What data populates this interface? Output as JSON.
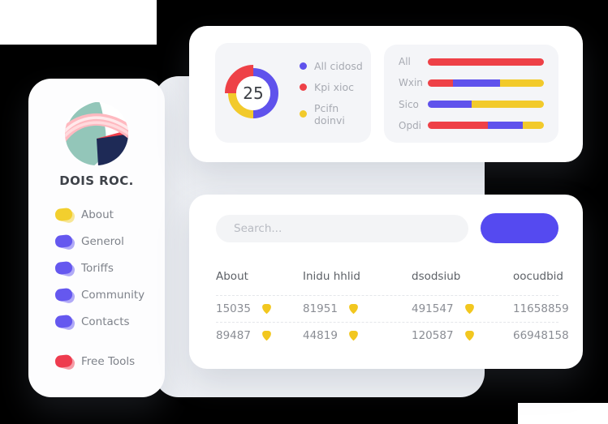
{
  "brand": {
    "name": "DOIS ROC."
  },
  "sidebar": {
    "items": [
      {
        "label": "About",
        "color": "#F2CF2E"
      },
      {
        "label": "Generol",
        "color": "#6558EF"
      },
      {
        "label": "Toriffs",
        "color": "#6558EF"
      },
      {
        "label": "Community",
        "color": "#6558EF"
      },
      {
        "label": "Contacts",
        "color": "#6558EF"
      }
    ],
    "footer_item": {
      "label": "Free Tools",
      "color": "#EE3C4F"
    }
  },
  "search": {
    "placeholder": "Search...",
    "button_color": "#554AF0"
  },
  "chart_data": [
    {
      "type": "donut",
      "center_value": "25",
      "segments": [
        {
          "label": "All cidosd",
          "color": "#5F52EC",
          "pct": 50,
          "thickness": 10
        },
        {
          "label": "Pcifn doinvi",
          "color": "#F2CA2B",
          "pct": 25,
          "thickness": 10
        },
        {
          "label": "Kpi xioc",
          "color": "#EE4147",
          "pct": 25,
          "thickness": 14
        }
      ],
      "legend": [
        {
          "label": "All cidosd",
          "color": "#5F52EC"
        },
        {
          "label": "Kpi xioc",
          "color": "#EE4147"
        },
        {
          "label": "Pcifn doinvi",
          "color": "#F2CA2B"
        }
      ],
      "legend_position": "right"
    },
    {
      "type": "stacked-bar-horizontal",
      "xlim": [
        0,
        100
      ],
      "rows": [
        {
          "label": "All",
          "segments": [
            {
              "color": "#EE4147",
              "pct": 100
            }
          ]
        },
        {
          "label": "Wxin",
          "segments": [
            {
              "color": "#EE4147",
              "pct": 22
            },
            {
              "color": "#5F52EC",
              "pct": 40
            },
            {
              "color": "#F2CA2B",
              "pct": 38
            }
          ]
        },
        {
          "label": "Sico",
          "segments": [
            {
              "color": "#5F52EC",
              "pct": 38
            },
            {
              "color": "#F2CA2B",
              "pct": 62
            }
          ]
        },
        {
          "label": "Opdi",
          "segments": [
            {
              "color": "#EE4147",
              "pct": 52
            },
            {
              "color": "#5F52EC",
              "pct": 30
            },
            {
              "color": "#F2CA2B",
              "pct": 18
            }
          ]
        }
      ]
    }
  ],
  "table": {
    "headers": [
      "About",
      "Inidu hhlid",
      "dsodsiub",
      "oocudbid"
    ],
    "badge_color": "#F2C71F",
    "rows": [
      [
        {
          "value": "15035",
          "badge": true
        },
        {
          "value": "81951",
          "badge": true
        },
        {
          "value": "491547",
          "badge": true
        },
        {
          "value": "11658859",
          "badge": false
        }
      ],
      [
        {
          "value": "89487",
          "badge": true
        },
        {
          "value": "44819",
          "badge": true
        },
        {
          "value": "120587",
          "badge": true
        },
        {
          "value": "66948158",
          "badge": false
        }
      ]
    ]
  }
}
